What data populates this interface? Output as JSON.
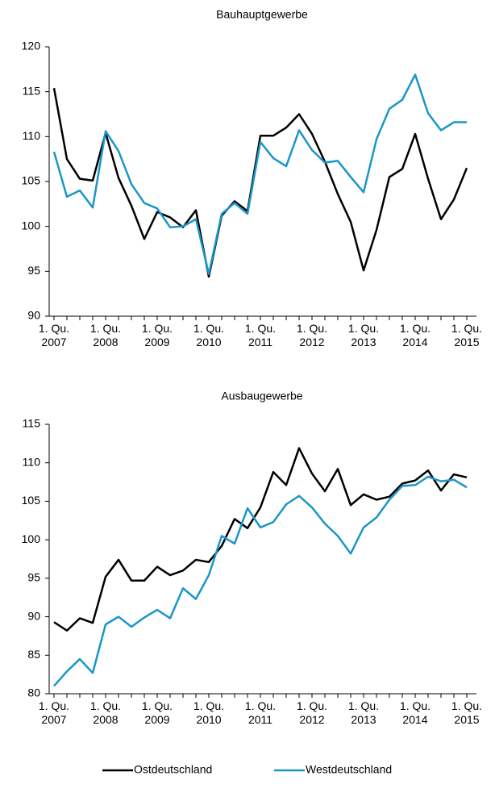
{
  "chart_data": [
    {
      "type": "line",
      "title": "Bauhauptgewerbe",
      "categories": [
        "1. Qu.\n2007",
        null,
        null,
        null,
        "1. Qu.\n2008",
        null,
        null,
        null,
        "1. Qu.\n2009",
        null,
        null,
        null,
        "1. Qu.\n2010",
        null,
        null,
        null,
        "1. Qu.\n2011",
        null,
        null,
        null,
        "1. Qu.\n2012",
        null,
        null,
        null,
        "1. Qu.\n2013",
        null,
        null,
        null,
        "1. Qu.\n2014",
        null,
        null,
        null,
        "1. Qu.\n2015"
      ],
      "ylim": [
        90,
        120
      ],
      "yticks": [
        90,
        95,
        100,
        105,
        110,
        115,
        120
      ],
      "series": [
        {
          "name": "Ostdeutschland",
          "color": "#000000",
          "values": [
            115.4,
            107.5,
            105.3,
            105.1,
            110.4,
            105.4,
            102.3,
            98.6,
            101.6,
            101.0,
            99.9,
            101.8,
            94.4,
            101.2,
            102.8,
            101.7,
            110.1,
            110.1,
            111.0,
            112.5,
            110.3,
            107.2,
            103.6,
            100.5,
            95.1,
            99.6,
            105.5,
            106.4,
            110.3,
            105.3,
            100.8,
            103.0,
            106.5
          ]
        },
        {
          "name": "Westdeutschland",
          "color": "#1a96c8",
          "values": [
            108.3,
            103.3,
            104.0,
            102.1,
            110.6,
            108.4,
            104.7,
            102.6,
            102.0,
            99.9,
            100.0,
            100.8,
            94.7,
            101.4,
            102.6,
            101.4,
            109.4,
            107.6,
            106.7,
            110.7,
            108.5,
            107.1,
            107.3,
            105.5,
            103.8,
            109.7,
            113.1,
            114.1,
            116.9,
            112.6,
            110.7,
            111.6,
            111.6
          ]
        }
      ]
    },
    {
      "type": "line",
      "title": "Ausbaugewerbe",
      "categories": [
        "1. Qu.\n2007",
        null,
        null,
        null,
        "1. Qu.\n2008",
        null,
        null,
        null,
        "1. Qu.\n2009",
        null,
        null,
        null,
        "1. Qu.\n2010",
        null,
        null,
        null,
        "1. Qu.\n2011",
        null,
        null,
        null,
        "1. Qu.\n2012",
        null,
        null,
        null,
        "1. Qu.\n2013",
        null,
        null,
        null,
        "1. Qu.\n2014",
        null,
        null,
        null,
        "1. Qu.\n2015"
      ],
      "ylim": [
        80,
        115
      ],
      "yticks": [
        80,
        85,
        90,
        95,
        100,
        105,
        110,
        115
      ],
      "series": [
        {
          "color": "#000000",
          "values": [
            89.3,
            88.2,
            89.8,
            89.2,
            95.2,
            97.4,
            94.7,
            94.7,
            96.5,
            95.4,
            96.0,
            97.4,
            97.1,
            99.2,
            102.7,
            101.5,
            104.2,
            108.8,
            107.1,
            111.9,
            108.6,
            106.3,
            109.2,
            104.5,
            105.9,
            105.2,
            105.6,
            107.3,
            107.7,
            109.0,
            106.4,
            108.5,
            108.1
          ]
        },
        {
          "color": "#1a96c8",
          "values": [
            81.0,
            82.9,
            84.5,
            82.7,
            89.0,
            90.0,
            88.7,
            89.9,
            90.9,
            89.8,
            93.7,
            92.3,
            95.4,
            100.5,
            99.5,
            104.1,
            101.6,
            102.3,
            104.6,
            105.7,
            104.2,
            102.1,
            100.5,
            98.2,
            101.6,
            102.9,
            105.2,
            107.0,
            107.1,
            108.2,
            107.6,
            107.8,
            106.8
          ]
        }
      ]
    }
  ]
}
